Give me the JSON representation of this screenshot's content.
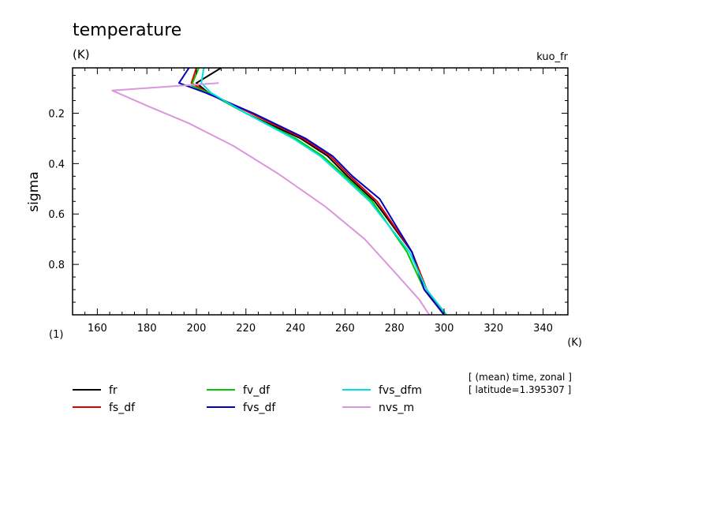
{
  "chart_data": {
    "type": "line",
    "title": "temperature",
    "units_label": "(K)",
    "subtitle_right": "kuo_fr",
    "xlabel": "(K)",
    "ylabel": "sigma",
    "y_units": "(1)",
    "xlim": [
      150,
      350
    ],
    "ylim": [
      1.0,
      0.02
    ],
    "x_ticks": [
      160,
      180,
      200,
      220,
      240,
      260,
      280,
      300,
      320,
      340
    ],
    "y_ticks": [
      0.2,
      0.4,
      0.6,
      0.8
    ],
    "grid": false,
    "annotations": [
      "[ (mean) time, zonal ]",
      "[ latitude=1.395307 ]"
    ],
    "legend_position": "bottom",
    "series": [
      {
        "name": "fr",
        "color": "#000000",
        "points": [
          [
            210,
            0.02
          ],
          [
            200,
            0.08
          ],
          [
            205,
            0.12
          ],
          [
            220,
            0.2
          ],
          [
            242,
            0.3
          ],
          [
            253,
            0.37
          ],
          [
            261,
            0.45
          ],
          [
            272,
            0.55
          ],
          [
            287,
            0.75
          ],
          [
            293,
            0.9
          ],
          [
            300,
            1.0
          ]
        ]
      },
      {
        "name": "fs_df",
        "color": "#e00000",
        "points": [
          [
            200,
            0.02
          ],
          [
            198,
            0.08
          ],
          [
            205,
            0.12
          ],
          [
            222,
            0.2
          ],
          [
            243,
            0.3
          ],
          [
            254,
            0.37
          ],
          [
            262,
            0.45
          ],
          [
            273,
            0.55
          ],
          [
            287,
            0.75
          ],
          [
            293,
            0.9
          ],
          [
            300,
            1.0
          ]
        ]
      },
      {
        "name": "fv_df",
        "color": "#00c800",
        "points": [
          [
            201,
            0.02
          ],
          [
            198,
            0.09
          ],
          [
            205,
            0.12
          ],
          [
            220,
            0.2
          ],
          [
            240,
            0.3
          ],
          [
            251,
            0.37
          ],
          [
            260,
            0.45
          ],
          [
            271,
            0.55
          ],
          [
            285,
            0.75
          ],
          [
            292,
            0.9
          ],
          [
            300,
            1.0
          ]
        ]
      },
      {
        "name": "fvs_df",
        "color": "#0000c0",
        "points": [
          [
            197,
            0.02
          ],
          [
            193,
            0.08
          ],
          [
            204,
            0.12
          ],
          [
            223,
            0.2
          ],
          [
            244,
            0.3
          ],
          [
            255,
            0.37
          ],
          [
            263,
            0.45
          ],
          [
            274,
            0.54
          ],
          [
            287,
            0.75
          ],
          [
            292,
            0.9
          ],
          [
            300,
            1.0
          ]
        ]
      },
      {
        "name": "fvs_dfm",
        "color": "#00e0e0",
        "points": [
          [
            203,
            0.02
          ],
          [
            202,
            0.08
          ],
          [
            206,
            0.12
          ],
          [
            220,
            0.2
          ],
          [
            239,
            0.3
          ],
          [
            250,
            0.37
          ],
          [
            259,
            0.45
          ],
          [
            270,
            0.55
          ],
          [
            286,
            0.75
          ],
          [
            293,
            0.9
          ],
          [
            301,
            1.0
          ]
        ]
      },
      {
        "name": "nvs_m",
        "color": "#dc96dc",
        "points": [
          [
            209,
            0.08
          ],
          [
            166,
            0.11
          ],
          [
            180,
            0.17
          ],
          [
            197,
            0.24
          ],
          [
            215,
            0.33
          ],
          [
            233,
            0.44
          ],
          [
            252,
            0.57
          ],
          [
            268,
            0.7
          ],
          [
            280,
            0.83
          ],
          [
            290,
            0.94
          ],
          [
            294,
            1.0
          ]
        ]
      }
    ]
  }
}
